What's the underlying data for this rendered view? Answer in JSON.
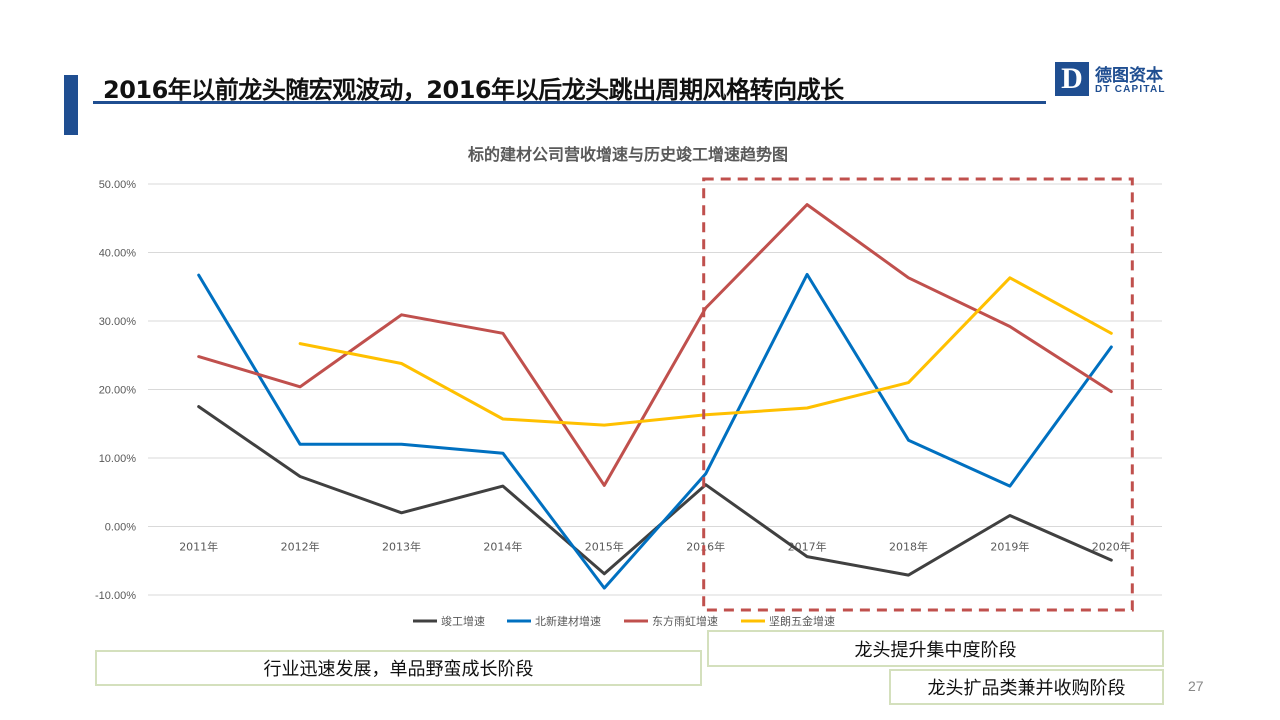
{
  "slide": {
    "title": "2016年以前龙头随宏观波动，2016年以后龙头跳出周期风格转向成长",
    "page_number": "27",
    "accent_color": "#1f4e91"
  },
  "logo": {
    "mark": "D",
    "name_cn": "德图资本",
    "name_en": "DT CAPITAL"
  },
  "annotations": {
    "stage1": "行业迅速发展，单品野蛮成长阶段",
    "stage2": "龙头提升集中度阶段",
    "stage3": "龙头扩品类兼并收购阶段"
  },
  "chart_data": {
    "type": "line",
    "title": "标的建材公司营收增速与历史竣工增速趋势图",
    "categories": [
      "2011年",
      "2012年",
      "2013年",
      "2014年",
      "2015年",
      "2016年",
      "2017年",
      "2018年",
      "2019年",
      "2020年"
    ],
    "y_tick_labels": [
      "50.00%",
      "40.00%",
      "30.00%",
      "20.00%",
      "10.00%",
      "0.00%",
      "-10.00%"
    ],
    "ylim": [
      -10,
      50
    ],
    "y_unit": "%",
    "grid": true,
    "legend_position": "bottom",
    "series": [
      {
        "name": "竣工增速",
        "color": "#404040",
        "values": [
          17.5,
          7.3,
          2.0,
          5.9,
          -6.9,
          6.1,
          -4.4,
          -7.1,
          1.6,
          -4.9
        ]
      },
      {
        "name": "北新建材增速",
        "color": "#0070c0",
        "values": [
          36.7,
          12.0,
          12.0,
          10.7,
          -9.0,
          7.7,
          36.8,
          12.6,
          5.9,
          26.2
        ]
      },
      {
        "name": "东方雨虹增速",
        "color": "#c0504d",
        "values": [
          24.8,
          20.4,
          30.9,
          28.2,
          6.0,
          31.9,
          47.0,
          36.3,
          29.2,
          19.7
        ]
      },
      {
        "name": "坚朗五金增速",
        "color": "#ffc000",
        "values": [
          null,
          26.7,
          23.8,
          15.7,
          14.8,
          16.3,
          17.3,
          21.0,
          36.3,
          28.2
        ]
      }
    ],
    "highlight_region": {
      "from_category": "2016年",
      "to_category": "2020年",
      "style": "dashed",
      "color": "#c0504d"
    }
  }
}
